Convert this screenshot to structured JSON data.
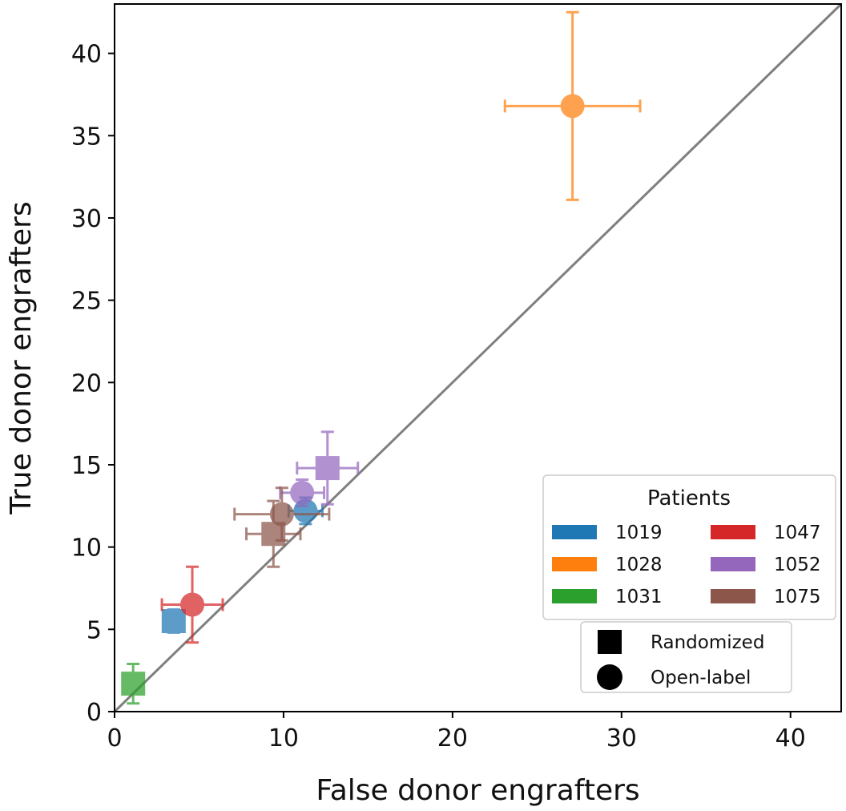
{
  "chart_data": {
    "type": "scatter",
    "xlabel": "False donor engrafters",
    "ylabel": "True donor engrafters",
    "xlim": [
      0,
      43
    ],
    "ylim": [
      0,
      43
    ],
    "x_ticks": [
      0,
      10,
      20,
      30,
      40
    ],
    "y_ticks": [
      0,
      5,
      10,
      15,
      20,
      25,
      30,
      35,
      40
    ],
    "grid": false,
    "reference_line": "y = x",
    "reference_line_color": "#7f7f7f",
    "legend": {
      "title": "Patients",
      "placement": "lower-right",
      "entries": [
        {
          "label": "1019",
          "color": "#1f77b4"
        },
        {
          "label": "1028",
          "color": "#ff7f0e"
        },
        {
          "label": "1031",
          "color": "#2ca02c"
        },
        {
          "label": "1047",
          "color": "#d62728"
        },
        {
          "label": "1052",
          "color": "#9467bd"
        },
        {
          "label": "1075",
          "color": "#8c564b"
        }
      ],
      "markers": [
        {
          "label": "Randomized",
          "shape": "square"
        },
        {
          "label": "Open-label",
          "shape": "circle"
        }
      ]
    },
    "points": [
      {
        "patient": "1019",
        "group": "Randomized",
        "x": 3.5,
        "y": 5.5,
        "x_err": 0.4,
        "y_err": 0.7
      },
      {
        "patient": "1019",
        "group": "Open-label",
        "x": 11.3,
        "y": 12.2,
        "x_err": 1.0,
        "y_err": 0.8
      },
      {
        "patient": "1028",
        "group": "Open-label",
        "x": 27.1,
        "y": 36.8,
        "x_err": 4.0,
        "y_err": 5.7
      },
      {
        "patient": "1031",
        "group": "Randomized",
        "x": 1.1,
        "y": 1.7,
        "x_err": 0.5,
        "y_err": 1.2
      },
      {
        "patient": "1047",
        "group": "Open-label",
        "x": 4.6,
        "y": 6.5,
        "x_err": 1.8,
        "y_err": 2.3
      },
      {
        "patient": "1052",
        "group": "Randomized",
        "x": 12.6,
        "y": 14.8,
        "x_err": 1.8,
        "y_err": 2.2
      },
      {
        "patient": "1052",
        "group": "Open-label",
        "x": 11.1,
        "y": 13.3,
        "x_err": 1.3,
        "y_err": 0.8
      },
      {
        "patient": "1075",
        "group": "Randomized",
        "x": 9.4,
        "y": 10.8,
        "x_err": 1.6,
        "y_err": 2.0
      },
      {
        "patient": "1075",
        "group": "Open-label",
        "x": 9.9,
        "y": 12.0,
        "x_err": 2.8,
        "y_err": 1.6
      }
    ]
  }
}
